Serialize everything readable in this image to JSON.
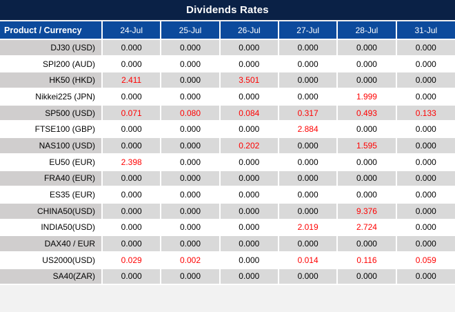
{
  "title": "Dividends Rates",
  "colors": {
    "title_bar_bg": "#0A2146",
    "header_bg": "#0C4A9C",
    "row_stripe_gray": "#D9D9D9",
    "product_stripe_gray": "#D0CECE",
    "value_highlight_red": "#FF0000"
  },
  "chart_data": {
    "type": "table",
    "title": "Dividends Rates",
    "row_header_label": "Product / Currency",
    "columns": [
      "24-Jul",
      "25-Jul",
      "26-Jul",
      "27-Jul",
      "28-Jul",
      "31-Jul"
    ],
    "rows": [
      {
        "product": "DJ30 (USD)",
        "values": [
          "0.000",
          "0.000",
          "0.000",
          "0.000",
          "0.000",
          "0.000"
        ]
      },
      {
        "product": "SPI200 (AUD)",
        "values": [
          "0.000",
          "0.000",
          "0.000",
          "0.000",
          "0.000",
          "0.000"
        ]
      },
      {
        "product": "HK50 (HKD)",
        "values": [
          "2.411",
          "0.000",
          "3.501",
          "0.000",
          "0.000",
          "0.000"
        ]
      },
      {
        "product": "Nikkei225 (JPN)",
        "values": [
          "0.000",
          "0.000",
          "0.000",
          "0.000",
          "1.999",
          "0.000"
        ]
      },
      {
        "product": "SP500 (USD)",
        "values": [
          "0.071",
          "0.080",
          "0.084",
          "0.317",
          "0.493",
          "0.133"
        ]
      },
      {
        "product": "FTSE100 (GBP)",
        "values": [
          "0.000",
          "0.000",
          "0.000",
          "2.884",
          "0.000",
          "0.000"
        ]
      },
      {
        "product": "NAS100 (USD)",
        "values": [
          "0.000",
          "0.000",
          "0.202",
          "0.000",
          "1.595",
          "0.000"
        ]
      },
      {
        "product": "EU50 (EUR)",
        "values": [
          "2.398",
          "0.000",
          "0.000",
          "0.000",
          "0.000",
          "0.000"
        ]
      },
      {
        "product": "FRA40 (EUR)",
        "values": [
          "0.000",
          "0.000",
          "0.000",
          "0.000",
          "0.000",
          "0.000"
        ]
      },
      {
        "product": "ES35 (EUR)",
        "values": [
          "0.000",
          "0.000",
          "0.000",
          "0.000",
          "0.000",
          "0.000"
        ]
      },
      {
        "product": "CHINA50(USD)",
        "values": [
          "0.000",
          "0.000",
          "0.000",
          "0.000",
          "9.376",
          "0.000"
        ]
      },
      {
        "product": "INDIA50(USD)",
        "values": [
          "0.000",
          "0.000",
          "0.000",
          "2.019",
          "2.724",
          "0.000"
        ]
      },
      {
        "product": "DAX40 / EUR",
        "values": [
          "0.000",
          "0.000",
          "0.000",
          "0.000",
          "0.000",
          "0.000"
        ]
      },
      {
        "product": "US2000(USD)",
        "values": [
          "0.029",
          "0.002",
          "0.000",
          "0.014",
          "0.116",
          "0.059"
        ]
      },
      {
        "product": "SA40(ZAR)",
        "values": [
          "0.000",
          "0.000",
          "0.000",
          "0.000",
          "0.000",
          "0.000"
        ]
      }
    ]
  }
}
